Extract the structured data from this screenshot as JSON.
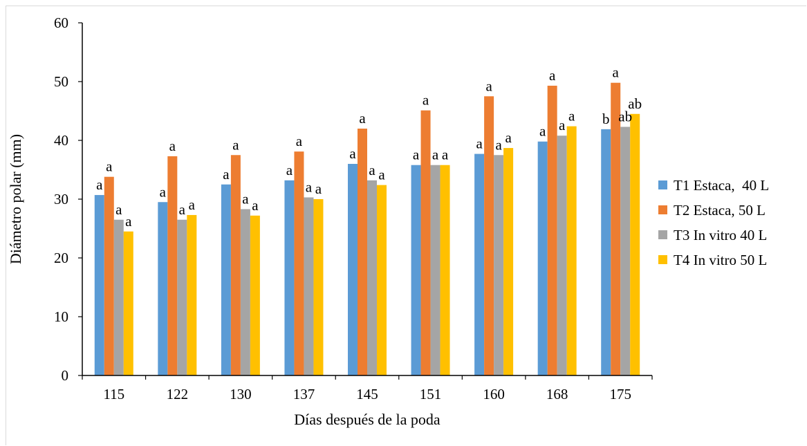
{
  "chart_data": {
    "type": "bar",
    "title": "",
    "xlabel": "Días después de la poda",
    "ylabel": "Diámetro polar (mm)",
    "ylim": [
      0,
      60
    ],
    "yticks": [
      0,
      10,
      20,
      30,
      40,
      50,
      60
    ],
    "grid": false,
    "legend_position": "right",
    "categories": [
      "115",
      "122",
      "130",
      "137",
      "145",
      "151",
      "160",
      "168",
      "175"
    ],
    "series": [
      {
        "name": "T1 Estaca,  40 L",
        "color": "#5B9BD5",
        "values": [
          30.7,
          29.5,
          32.5,
          33.2,
          36.0,
          35.8,
          37.7,
          39.8,
          41.9
        ],
        "labels": [
          "a",
          "a",
          "a",
          "a",
          "a",
          "a",
          "a",
          "a",
          "b"
        ]
      },
      {
        "name": "T2 Estaca, 50 L",
        "color": "#ED7D31",
        "values": [
          33.8,
          37.3,
          37.5,
          38.1,
          42.0,
          45.1,
          47.5,
          49.3,
          49.8
        ],
        "labels": [
          "a",
          "a",
          "a",
          "a",
          "a",
          "a",
          "a",
          "a",
          "a"
        ]
      },
      {
        "name": "T3 In vitro 40 L",
        "color": "#A5A5A5",
        "values": [
          26.5,
          26.5,
          28.3,
          30.3,
          33.2,
          35.8,
          37.5,
          40.8,
          42.3
        ],
        "labels": [
          "a",
          "a",
          "a",
          "a",
          "a",
          "a",
          "a",
          "a",
          "ab"
        ]
      },
      {
        "name": "T4 In vitro 50 L",
        "color": "#FFC000",
        "values": [
          24.5,
          27.3,
          27.2,
          30.0,
          32.4,
          35.8,
          38.7,
          42.4,
          44.5
        ],
        "labels": [
          "a",
          "a",
          "a",
          "a",
          "a",
          "a",
          "a",
          "a",
          "ab"
        ]
      }
    ]
  }
}
